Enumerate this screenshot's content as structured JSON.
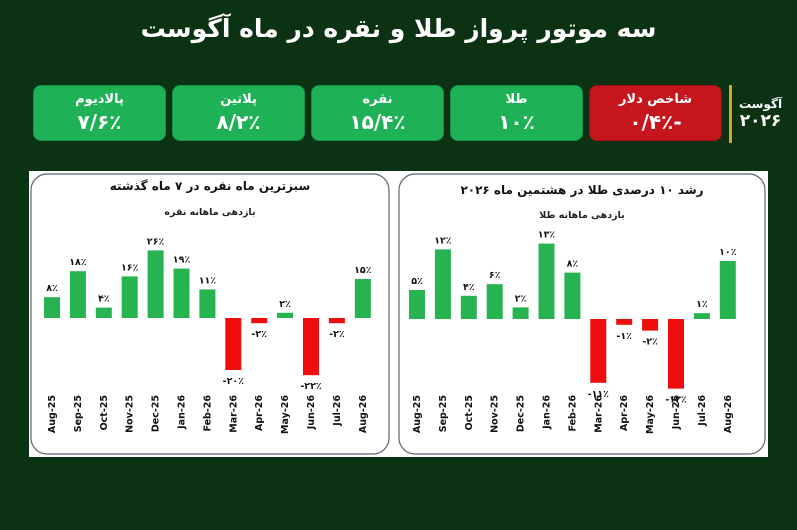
{
  "header": {
    "title": "سه موتور پرواز طلا و نقره در ماه آگوست"
  },
  "period": {
    "month": "آگوست",
    "year": "۲۰۲۶"
  },
  "cards": [
    {
      "label": "شاخص دلار",
      "value": "-۰/۴٪",
      "color": "#c4161c"
    },
    {
      "label": "طلا",
      "value": "۱۰٪",
      "color": "#1fb156"
    },
    {
      "label": "نقره",
      "value": "۱۵/۴٪",
      "color": "#1fb156"
    },
    {
      "label": "پلاتین",
      "value": "۸/۲٪",
      "color": "#1fb156"
    },
    {
      "label": "پالادیوم",
      "value": "۷/۶٪",
      "color": "#1fb156"
    }
  ],
  "colors": {
    "positive": "#27b34f",
    "negative": "#f00d0d",
    "frame": "#5a6573"
  },
  "chart_data": [
    {
      "type": "bar",
      "title": "سبزترین ماه نقره در ۷ ماه گذشته",
      "subtitle": "بازدهی ماهانه نقره",
      "categories": [
        "Aug-25",
        "Sep-25",
        "Oct-25",
        "Nov-25",
        "Dec-25",
        "Jan-26",
        "Feb-26",
        "Mar-26",
        "Apr-26",
        "May-26",
        "Jun-26",
        "Jul-26",
        "Aug-26"
      ],
      "values": [
        8,
        18,
        4,
        16,
        26,
        19,
        11,
        -20,
        -2,
        2,
        -22,
        -2,
        15
      ],
      "value_labels": [
        "۸٪",
        "۱۸٪",
        "۴٪",
        "۱۶٪",
        "۲۶٪",
        "۱۹٪",
        "۱۱٪",
        "-۲۰٪",
        "-۲٪",
        "۲٪",
        "-۲۲٪",
        "-۲٪",
        "۱۵٪"
      ],
      "ylim": [
        -26,
        30
      ]
    },
    {
      "type": "bar",
      "title": "رشد ۱۰ درصدی طلا در هشتمین ماه ۲۰۲۶",
      "subtitle": "بازدهی ماهانه طلا",
      "categories": [
        "Aug-25",
        "Sep-25",
        "Oct-25",
        "Nov-25",
        "Dec-25",
        "Jan-26",
        "Feb-26",
        "Mar-26",
        "Apr-26",
        "May-26",
        "Jun-26",
        "Jul-26",
        "Aug-26"
      ],
      "values": [
        5,
        12,
        4,
        6,
        2,
        13,
        8,
        -11,
        -1,
        -2,
        -12,
        1,
        10
      ],
      "value_labels": [
        "۵٪",
        "۱۲٪",
        "۴٪",
        "۶٪",
        "۲٪",
        "۱۳٪",
        "۸٪",
        "-۱۱٪",
        "-۱٪",
        "-۲٪",
        "-۱۲٪",
        "۱٪",
        "۱۰٪"
      ],
      "ylim": [
        -14,
        16
      ]
    }
  ]
}
